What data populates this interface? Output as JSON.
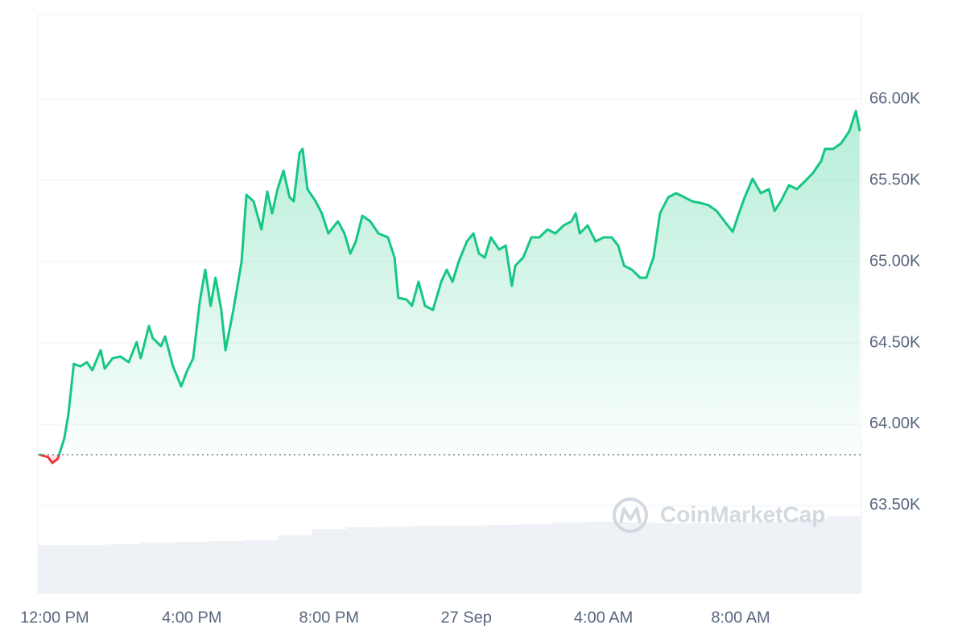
{
  "chart_data": {
    "type": "line",
    "x": [
      -0.42,
      -0.19,
      -0.07,
      0.09,
      0.28,
      0.4,
      0.56,
      0.75,
      0.94,
      1.1,
      1.34,
      1.46,
      1.69,
      1.92,
      2.16,
      2.39,
      2.51,
      2.75,
      2.86,
      3.1,
      3.22,
      3.45,
      3.69,
      3.85,
      4.04,
      4.23,
      4.39,
      4.55,
      4.69,
      4.86,
      4.98,
      5.21,
      5.45,
      5.59,
      5.8,
      6.03,
      6.2,
      6.34,
      6.5,
      6.67,
      6.85,
      6.97,
      7.14,
      7.23,
      7.37,
      7.61,
      7.79,
      7.98,
      8.26,
      8.45,
      8.62,
      8.78,
      8.97,
      9.2,
      9.44,
      9.72,
      9.91,
      10.02,
      10.26,
      10.42,
      10.61,
      10.8,
      11.03,
      11.27,
      11.43,
      11.6,
      11.78,
      12.02,
      12.21,
      12.37,
      12.54,
      12.72,
      12.96,
      13.15,
      13.33,
      13.43,
      13.66,
      13.9,
      14.13,
      14.37,
      14.6,
      14.84,
      15.07,
      15.19,
      15.31,
      15.54,
      15.77,
      16.01,
      16.24,
      16.43,
      16.6,
      16.83,
      17.07,
      17.25,
      17.46,
      17.65,
      17.89,
      18.12,
      18.36,
      18.59,
      18.83,
      19.06,
      19.3,
      19.53,
      19.77,
      19.95,
      20.12,
      20.35,
      20.59,
      20.82,
      20.99,
      21.17,
      21.41,
      21.64,
      21.88,
      22.11,
      22.35,
      22.46,
      22.7,
      22.93,
      23.17,
      23.36,
      23.47
    ],
    "series": [
      {
        "color": "#16c784",
        "down_color": "#ea3943",
        "values": [
          63812,
          63797,
          63762,
          63787,
          63911,
          64059,
          64371,
          64356,
          64381,
          64332,
          64455,
          64342,
          64406,
          64416,
          64381,
          64505,
          64406,
          64604,
          64530,
          64480,
          64540,
          64356,
          64233,
          64322,
          64406,
          64752,
          64950,
          64728,
          64901,
          64703,
          64455,
          64703,
          65000,
          65411,
          65371,
          65198,
          65431,
          65297,
          65446,
          65559,
          65396,
          65371,
          65668,
          65693,
          65446,
          65371,
          65297,
          65173,
          65248,
          65173,
          65050,
          65124,
          65282,
          65248,
          65173,
          65149,
          65025,
          64777,
          64767,
          64728,
          64876,
          64728,
          64703,
          64876,
          64950,
          64876,
          65000,
          65124,
          65173,
          65050,
          65025,
          65149,
          65074,
          65099,
          64851,
          64975,
          65025,
          65149,
          65149,
          65198,
          65173,
          65223,
          65248,
          65297,
          65173,
          65223,
          65124,
          65149,
          65149,
          65099,
          64975,
          64950,
          64901,
          64901,
          65025,
          65297,
          65396,
          65421,
          65396,
          65371,
          65361,
          65347,
          65312,
          65248,
          65183,
          65297,
          65396,
          65510,
          65421,
          65446,
          65312,
          65371,
          65470,
          65446,
          65495,
          65545,
          65619,
          65693,
          65693,
          65728,
          65802,
          65926,
          65807
        ]
      }
    ],
    "reference_value": 63812,
    "xlim": [
      -0.49,
      23.52
    ],
    "xticks": [
      {
        "value": 0,
        "label": "12:00 PM"
      },
      {
        "value": 4,
        "label": "4:00 PM"
      },
      {
        "value": 8,
        "label": "8:00 PM"
      },
      {
        "value": 12,
        "label": "27 Sep"
      },
      {
        "value": 16,
        "label": "4:00 AM"
      },
      {
        "value": 20,
        "label": "8:00 AM"
      }
    ],
    "ylim": [
      62960,
      66520
    ],
    "yticks": [
      {
        "value": 63500,
        "label": "63.50K"
      },
      {
        "value": 64000,
        "label": "64.00K"
      },
      {
        "value": 64500,
        "label": "64.50K"
      },
      {
        "value": 65000,
        "label": "65.00K"
      },
      {
        "value": 65500,
        "label": "65.50K"
      },
      {
        "value": 66000,
        "label": "66.00K"
      }
    ],
    "grid": true,
    "volume": {
      "values": [
        60,
        60,
        61,
        63,
        64,
        65,
        66,
        72,
        80,
        82,
        83,
        84,
        84,
        85,
        86,
        88,
        89,
        88,
        87,
        87,
        88,
        89,
        92,
        96
      ],
      "color": "#eef1f5",
      "ylim": [
        0,
        720
      ]
    },
    "watermark": "CoinMarketCap"
  }
}
